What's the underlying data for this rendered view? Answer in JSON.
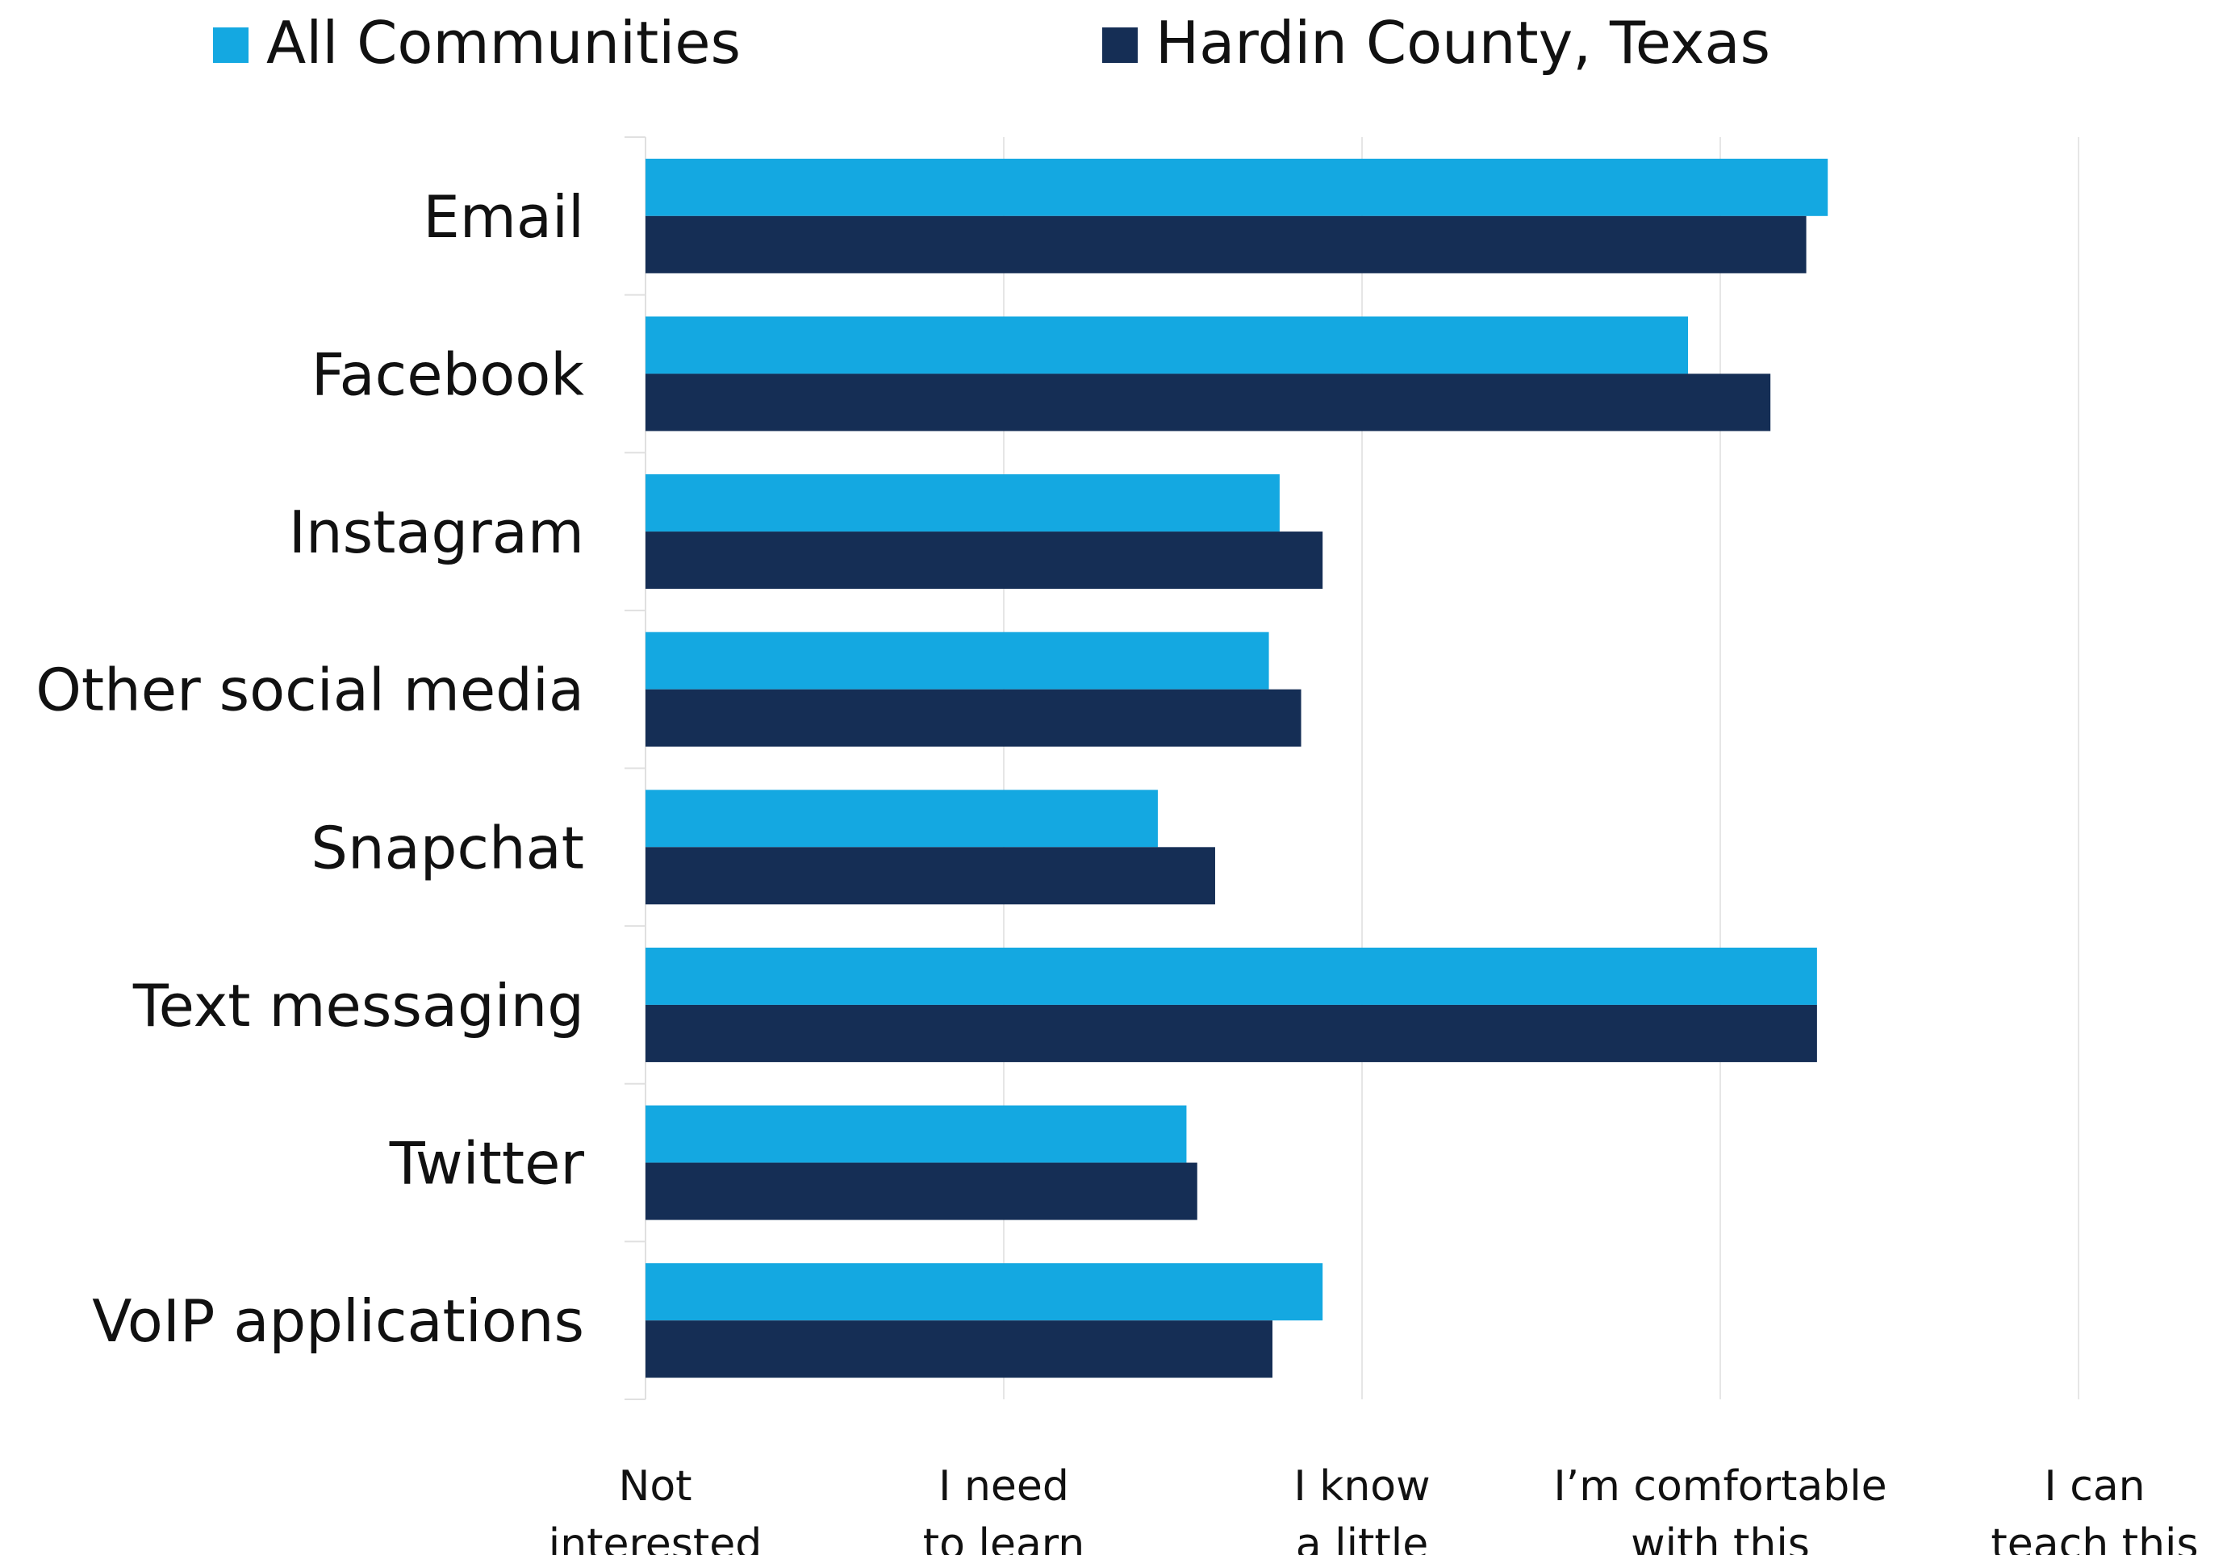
{
  "chart_data": {
    "type": "bar",
    "orientation": "horizontal",
    "categories": [
      "Email",
      "Facebook",
      "Instagram",
      "Other social media",
      "Snapchat",
      "Text messaging",
      "Twitter",
      "VoIP applications"
    ],
    "series": [
      {
        "name": "All Communities",
        "color": "#14a8e1",
        "values": [
          3.3,
          2.91,
          1.77,
          1.74,
          1.43,
          3.27,
          1.51,
          1.89
        ]
      },
      {
        "name": "Hardin County, Texas",
        "color": "#152e55",
        "values": [
          3.24,
          3.14,
          1.89,
          1.83,
          1.59,
          3.27,
          1.54,
          1.75
        ]
      }
    ],
    "x_ticks": [
      [
        "Not",
        "interested"
      ],
      [
        "I need",
        "to learn"
      ],
      [
        "I know",
        "a little"
      ],
      [
        "I’m comfortable",
        "with this"
      ],
      [
        "I can",
        "teach this"
      ]
    ],
    "xlim": [
      0,
      4
    ],
    "grid": true,
    "legend_position": "top"
  }
}
